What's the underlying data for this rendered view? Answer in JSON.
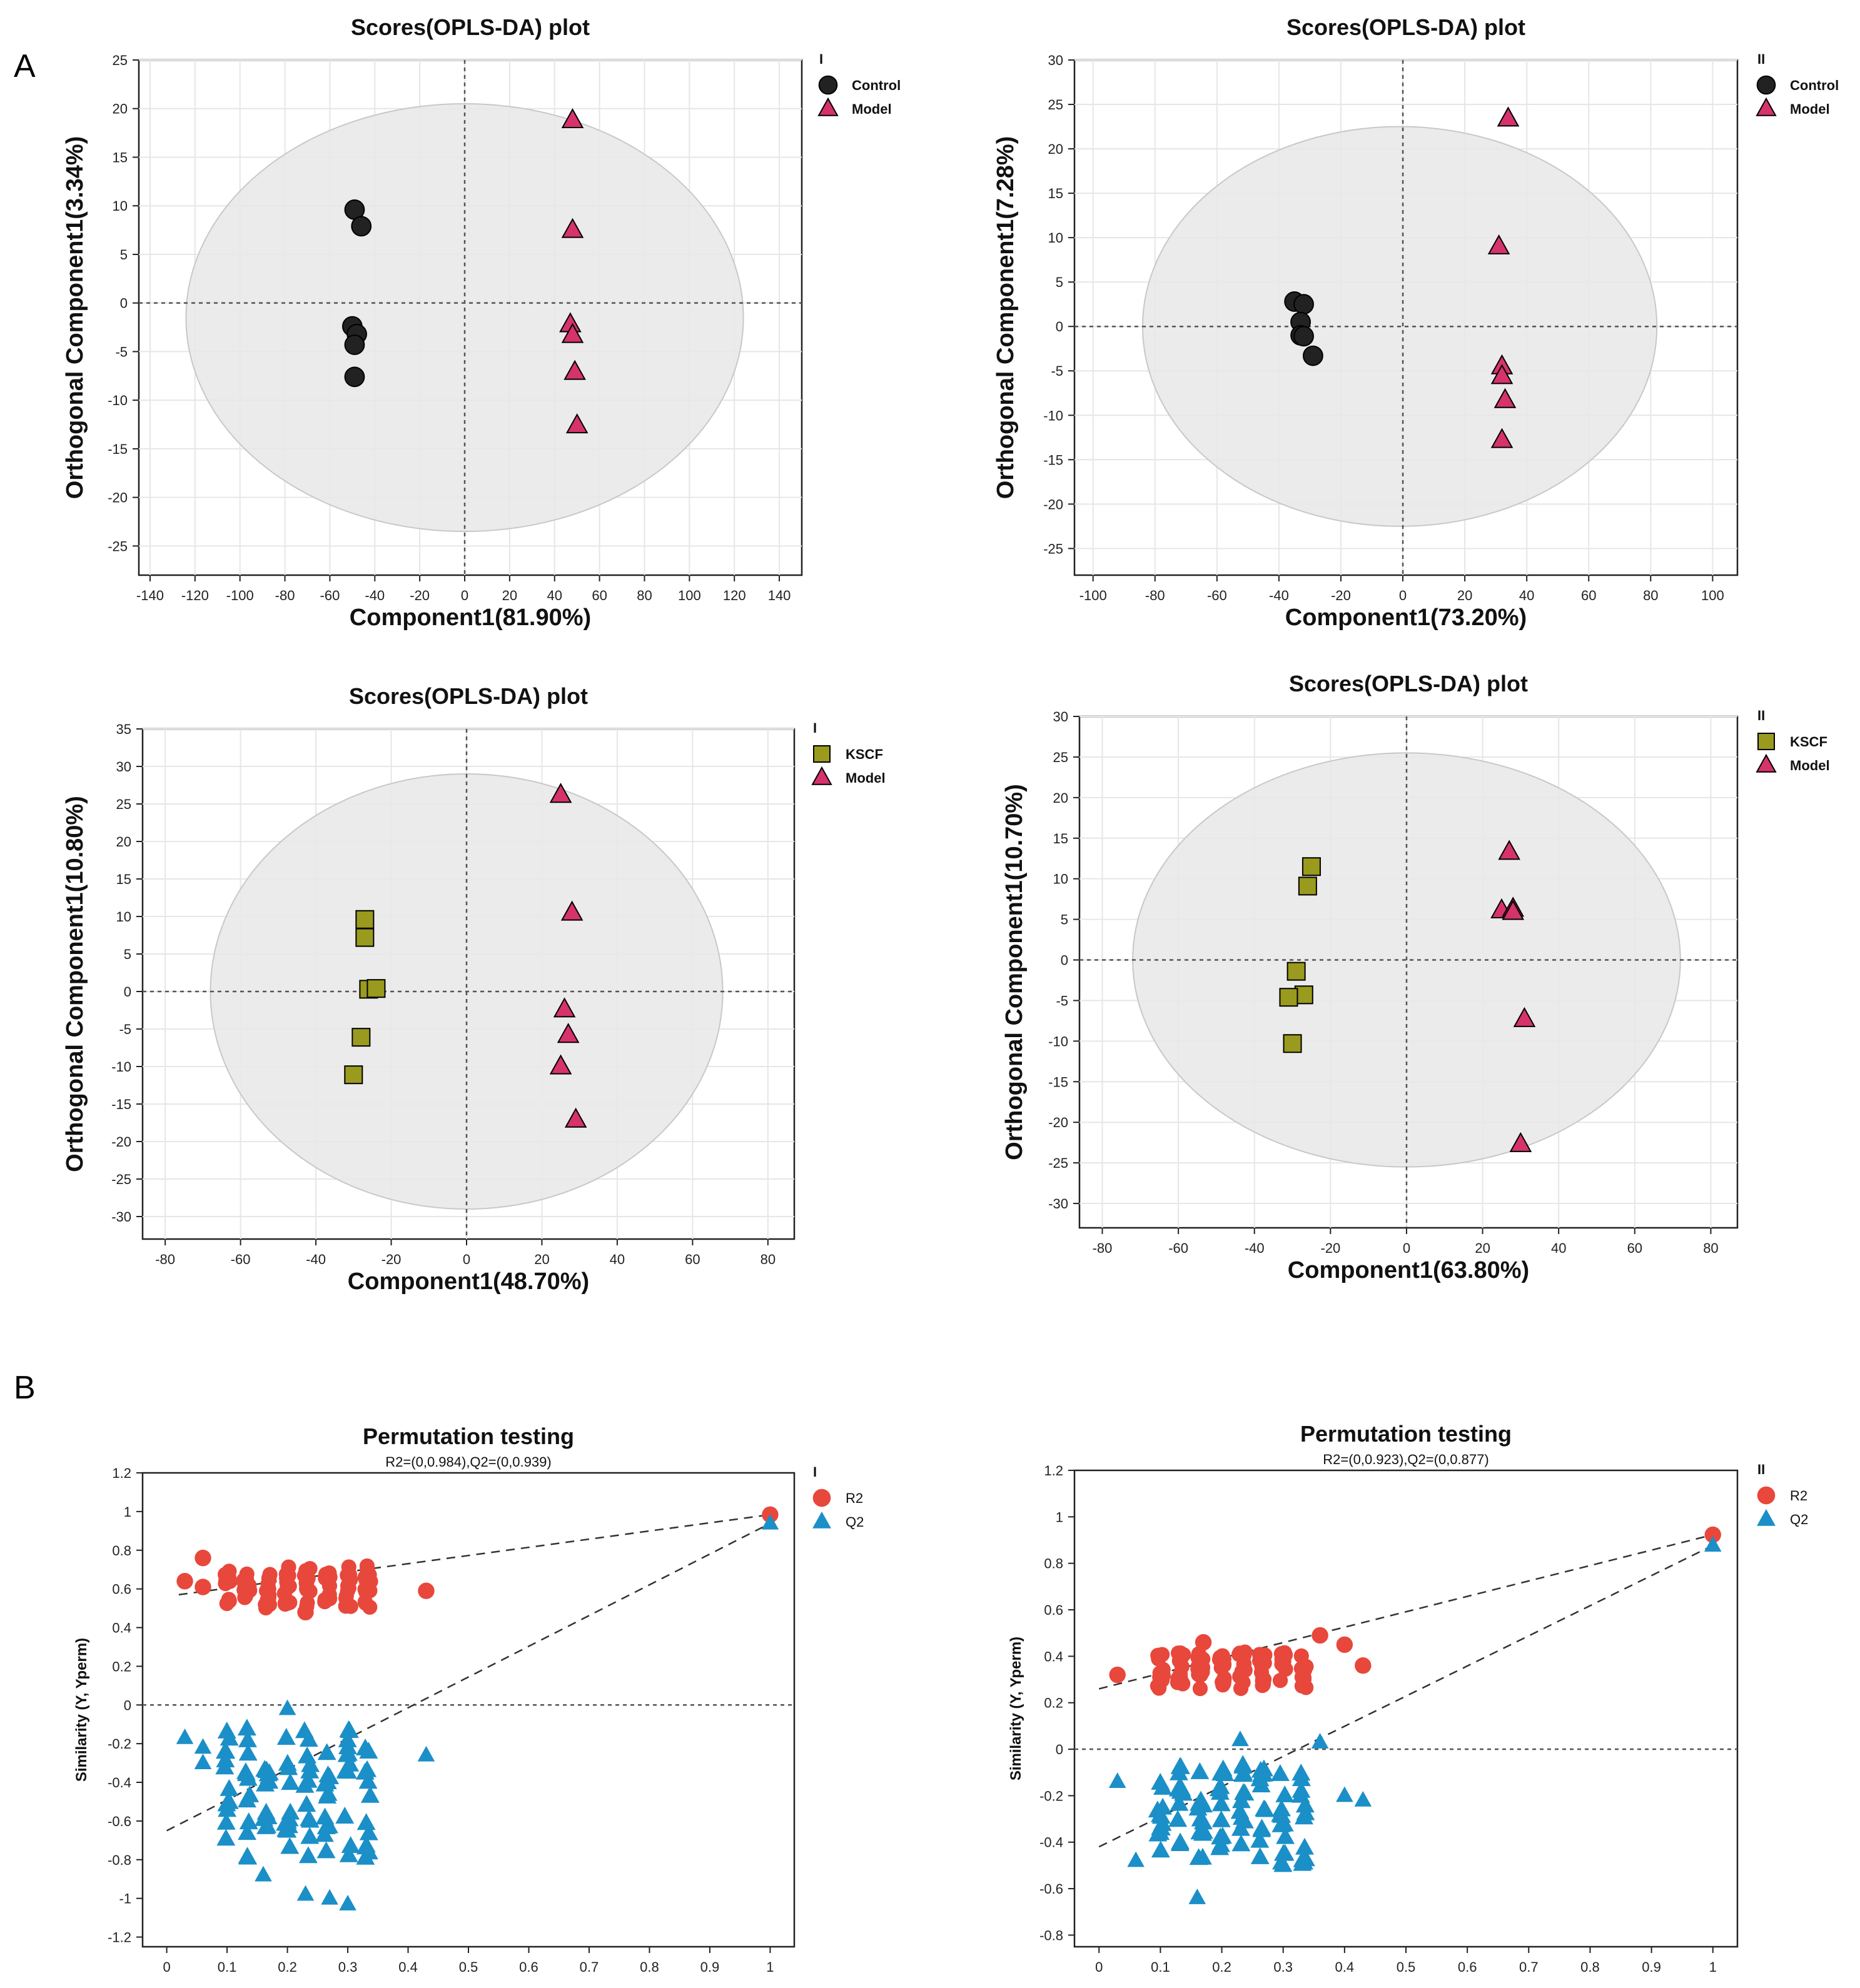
{
  "panel_labels": {
    "a": "A",
    "b": "B"
  },
  "chart_data": [
    {
      "type": "scatter",
      "title": "Scores(OPLS-DA) plot",
      "xlabel": "Component1(81.90%)",
      "ylabel": "Orthogonal Component1(3.34%)",
      "legend_title": "I",
      "xlim": [
        -145,
        150
      ],
      "ylim": [
        -28,
        25
      ],
      "xticks": [
        -140,
        -120,
        -100,
        -80,
        -60,
        -40,
        -20,
        0,
        20,
        40,
        60,
        80,
        100,
        120,
        140
      ],
      "yticks": [
        -25,
        -20,
        -15,
        -10,
        -5,
        0,
        5,
        10,
        15,
        20,
        25
      ],
      "ellipse": {
        "cx": 0,
        "cy": -1.5,
        "rx": 124,
        "ry": 22
      },
      "series": [
        {
          "name": "Control",
          "marker": "circle",
          "color": "#222222",
          "points": [
            [
              -49,
              9.6
            ],
            [
              -46,
              7.9
            ],
            [
              -50,
              -2.4
            ],
            [
              -48,
              -3.2
            ],
            [
              -49,
              -4.3
            ],
            [
              -49,
              -7.6
            ]
          ]
        },
        {
          "name": "Model",
          "marker": "triangle",
          "color": "#d6336c",
          "points": [
            [
              48,
              18.8
            ],
            [
              48,
              7.5
            ],
            [
              47,
              -2.2
            ],
            [
              48,
              -3.3
            ],
            [
              49,
              -7.1
            ],
            [
              50,
              -12.6
            ]
          ]
        }
      ]
    },
    {
      "type": "scatter",
      "title": "Scores(OPLS-DA) plot",
      "xlabel": "Component1(73.20%)",
      "ylabel": "Orthogonal Component1(7.28%)",
      "legend_title": "II",
      "xlim": [
        -106,
        108
      ],
      "ylim": [
        -28,
        30
      ],
      "xticks": [
        -100,
        -80,
        -60,
        -40,
        -20,
        0,
        20,
        40,
        60,
        80,
        100
      ],
      "yticks": [
        -25,
        -20,
        -15,
        -10,
        -5,
        0,
        5,
        10,
        15,
        20,
        25,
        30
      ],
      "ellipse": {
        "cx": -1,
        "cy": 0,
        "rx": 83,
        "ry": 22.5
      },
      "series": [
        {
          "name": "Control",
          "marker": "circle",
          "color": "#222222",
          "points": [
            [
              -35,
              2.8
            ],
            [
              -32,
              2.5
            ],
            [
              -33,
              0.5
            ],
            [
              -33,
              -1.0
            ],
            [
              -32,
              -1.1
            ],
            [
              -29,
              -3.3
            ]
          ]
        },
        {
          "name": "Model",
          "marker": "triangle",
          "color": "#d6336c",
          "points": [
            [
              34,
              23.4
            ],
            [
              31,
              9.0
            ],
            [
              32,
              -4.5
            ],
            [
              32,
              -5.6
            ],
            [
              33,
              -8.3
            ],
            [
              32,
              -12.8
            ]
          ]
        }
      ]
    },
    {
      "type": "scatter",
      "title": "Scores(OPLS-DA) plot",
      "xlabel": "Component1(48.70%)",
      "ylabel": "Orthogonal Component1(10.80%)",
      "legend_title": "I",
      "xlim": [
        -86,
        87
      ],
      "ylim": [
        -33,
        35
      ],
      "xticks": [
        -80,
        -60,
        -40,
        -20,
        0,
        20,
        40,
        60,
        80
      ],
      "yticks": [
        -30,
        -25,
        -20,
        -15,
        -10,
        -5,
        0,
        5,
        10,
        15,
        20,
        25,
        30,
        35
      ],
      "ellipse": {
        "cx": 0,
        "cy": 0,
        "rx": 68,
        "ry": 29
      },
      "series": [
        {
          "name": "KSCF",
          "marker": "square",
          "color": "#9a9a1e",
          "points": [
            [
              -27,
              9.6
            ],
            [
              -27,
              7.2
            ],
            [
              -26,
              0.3
            ],
            [
              -24,
              0.4
            ],
            [
              -28,
              -6.1
            ],
            [
              -30,
              -11.1
            ]
          ]
        },
        {
          "name": "Model",
          "marker": "triangle",
          "color": "#d6336c",
          "points": [
            [
              25,
              26.2
            ],
            [
              28,
              10.5
            ],
            [
              26,
              -2.4
            ],
            [
              27,
              -5.8
            ],
            [
              25,
              -10.0
            ],
            [
              29,
              -17.1
            ]
          ]
        }
      ]
    },
    {
      "type": "scatter",
      "title": "Scores(OPLS-DA) plot",
      "xlabel": "Component1(63.80%)",
      "ylabel": "Orthogonal Component1(10.70%)",
      "legend_title": "II",
      "xlim": [
        -86,
        87
      ],
      "ylim": [
        -33,
        30
      ],
      "xticks": [
        -80,
        -60,
        -40,
        -20,
        0,
        20,
        40,
        60,
        80
      ],
      "yticks": [
        -30,
        -25,
        -20,
        -15,
        -10,
        -5,
        0,
        5,
        10,
        15,
        20,
        25,
        30
      ],
      "ellipse": {
        "cx": 0,
        "cy": 0,
        "rx": 72,
        "ry": 25.5
      },
      "series": [
        {
          "name": "KSCF",
          "marker": "square",
          "color": "#9a9a1e",
          "points": [
            [
              -25,
              11.5
            ],
            [
              -26,
              9.1
            ],
            [
              -29,
              -1.4
            ],
            [
              -27,
              -4.3
            ],
            [
              -31,
              -4.6
            ],
            [
              -30,
              -10.3
            ]
          ]
        },
        {
          "name": "Model",
          "marker": "triangle",
          "color": "#d6336c",
          "points": [
            [
              27,
              13.3
            ],
            [
              25,
              6.1
            ],
            [
              28,
              6.3
            ],
            [
              28,
              5.9
            ],
            [
              31,
              -7.3
            ],
            [
              30,
              -22.7
            ]
          ]
        }
      ]
    },
    {
      "type": "scatter",
      "title": "Permutation testing",
      "subtitle": "R2=(0,0.984),Q2=(0,0.939)",
      "xlabel": "",
      "ylabel": "Similarity (Y, Yperm)",
      "legend_title": "I",
      "xlim": [
        -0.04,
        1.04
      ],
      "ylim": [
        -1.25,
        1.2
      ],
      "xticks": [
        0,
        0.1,
        0.2,
        0.3,
        0.4,
        0.5,
        0.6,
        0.7,
        0.8,
        0.9,
        1
      ],
      "yticks": [
        -1.2,
        -1,
        -0.8,
        -0.6,
        -0.4,
        -0.2,
        0,
        0.2,
        0.4,
        0.6,
        0.8,
        1,
        1.2
      ],
      "regression": [
        {
          "name": "R2",
          "x1": 0.02,
          "y1": 0.57,
          "x2": 1,
          "y2": 0.984
        },
        {
          "name": "Q2",
          "x1": 0,
          "y1": -0.65,
          "x2": 1,
          "y2": 0.939
        }
      ],
      "permutation": {
        "R2": {
          "x_range": [
            0.1,
            0.33
          ],
          "y_range": [
            0.5,
            0.72
          ]
        },
        "Q2": {
          "x_range": [
            0.1,
            0.33
          ],
          "y_range": [
            -0.8,
            -0.12
          ]
        }
      },
      "series": [
        {
          "name": "R2",
          "marker": "circle",
          "color": "#e8473c",
          "points": [
            [
              1,
              0.984
            ],
            [
              0.03,
              0.64
            ],
            [
              0.06,
              0.76
            ],
            [
              0.06,
              0.61
            ],
            [
              0.43,
              0.59
            ],
            [
              0.23,
              0.48
            ]
          ]
        },
        {
          "name": "Q2",
          "marker": "triangle",
          "color": "#1b8fc7",
          "points": [
            [
              1,
              0.939
            ],
            [
              0.03,
              -0.17
            ],
            [
              0.06,
              -0.22
            ],
            [
              0.06,
              -0.3
            ],
            [
              0.2,
              -0.02
            ],
            [
              0.43,
              -0.26
            ],
            [
              0.23,
              -0.98
            ],
            [
              0.27,
              -1.0
            ],
            [
              0.3,
              -1.03
            ],
            [
              0.16,
              -0.88
            ]
          ]
        }
      ]
    },
    {
      "type": "scatter",
      "title": "Permutation testing",
      "subtitle": "R2=(0,0.923),Q2=(0,0.877)",
      "xlabel": "",
      "ylabel": "Similarity (Y, Yperm)",
      "legend_title": "II",
      "xlim": [
        -0.04,
        1.04
      ],
      "ylim": [
        -0.85,
        1.2
      ],
      "xticks": [
        0,
        0.1,
        0.2,
        0.3,
        0.4,
        0.5,
        0.6,
        0.7,
        0.8,
        0.9,
        1
      ],
      "yticks": [
        -0.8,
        -0.6,
        -0.4,
        -0.2,
        0,
        0.2,
        0.4,
        0.6,
        0.8,
        1,
        1.2
      ],
      "regression": [
        {
          "name": "R2",
          "x1": 0,
          "y1": 0.26,
          "x2": 1,
          "y2": 0.923
        },
        {
          "name": "Q2",
          "x1": 0,
          "y1": -0.42,
          "x2": 1,
          "y2": 0.877
        }
      ],
      "permutation": {
        "R2": {
          "x_range": [
            0.06,
            0.33
          ],
          "y_range": [
            0.26,
            0.42
          ]
        },
        "Q2": {
          "x_range": [
            0.06,
            0.33
          ],
          "y_range": [
            -0.5,
            -0.06
          ]
        }
      },
      "series": [
        {
          "name": "R2",
          "marker": "circle",
          "color": "#e8473c",
          "points": [
            [
              1,
              0.923
            ],
            [
              0.03,
              0.32
            ],
            [
              0.36,
              0.49
            ],
            [
              0.4,
              0.45
            ],
            [
              0.43,
              0.36
            ],
            [
              0.17,
              0.46
            ]
          ]
        },
        {
          "name": "Q2",
          "marker": "triangle",
          "color": "#1b8fc7",
          "points": [
            [
              1,
              0.877
            ],
            [
              0.03,
              -0.14
            ],
            [
              0.23,
              0.04
            ],
            [
              0.36,
              0.03
            ],
            [
              0.4,
              -0.2
            ],
            [
              0.43,
              -0.22
            ],
            [
              0.16,
              -0.64
            ],
            [
              0.06,
              -0.48
            ]
          ]
        }
      ]
    }
  ]
}
